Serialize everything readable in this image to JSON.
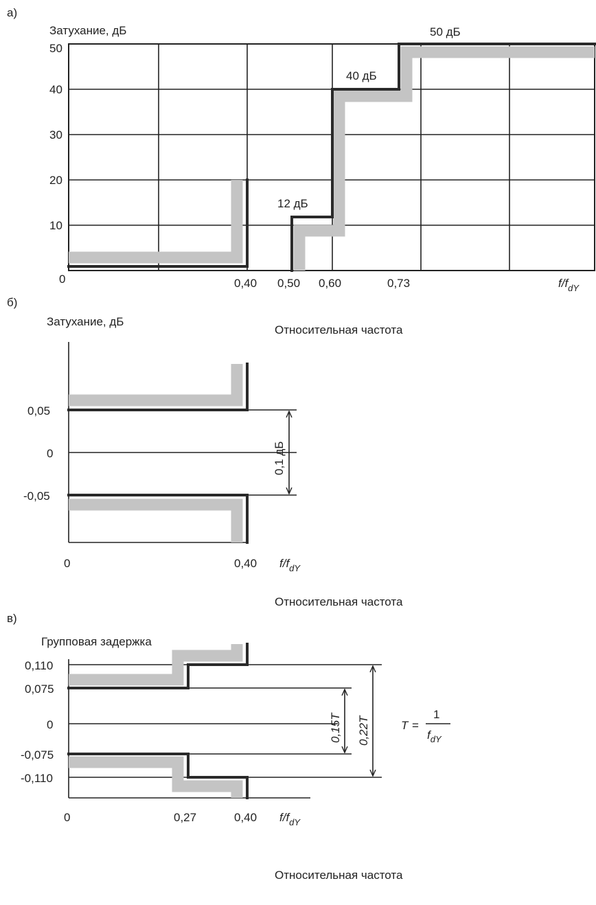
{
  "chart_data": [
    {
      "type": "line",
      "panel_label": "а)",
      "ylabel": "Затухание, дБ",
      "xlabel_italic": "f/f",
      "xlabel_sub": "dY",
      "ylim": [
        0,
        50
      ],
      "yticks": [
        "50",
        "40",
        "30",
        "20",
        "10",
        "0"
      ],
      "xticks": [
        "0,40",
        "0,50",
        "0,60",
        "0,73"
      ],
      "mask": [
        [
          0,
          1
        ],
        [
          0.4,
          1
        ],
        [
          0.4,
          20
        ],
        [
          0.5,
          0
        ],
        [
          0.5,
          12
        ],
        [
          0.6,
          12
        ],
        [
          0.6,
          40
        ],
        [
          0.73,
          40
        ],
        [
          0.73,
          50
        ],
        [
          1.2,
          50
        ]
      ],
      "annotations": [
        "12 дБ",
        "40 дБ",
        "50 дБ"
      ],
      "grid": true
    },
    {
      "type": "line",
      "panel_label": "б)",
      "ylabel": "Затухание, дБ",
      "xlabel_caption": "Относительная частота",
      "xlabel_italic": "f/f",
      "xlabel_sub": "dY",
      "yticks": [
        "0,05",
        "0",
        "-0,05"
      ],
      "xticks": [
        "0",
        "0,40"
      ],
      "mask_upper": [
        [
          0,
          0.05
        ],
        [
          0.4,
          0.05
        ]
      ],
      "mask_lower": [
        [
          0,
          -0.05
        ],
        [
          0.4,
          -0.05
        ]
      ],
      "dimension": "0,1 дБ"
    },
    {
      "type": "line",
      "panel_label": "в)",
      "xlabel_caption_top": "Относительная частота",
      "ylabel": "Групповая задержка",
      "xlabel_italic": "f/f",
      "xlabel_sub": "dY",
      "yticks": [
        "0,110",
        "0,075",
        "0",
        "-0,075",
        "-0,110"
      ],
      "xticks": [
        "0",
        "0,27",
        "0,40"
      ],
      "mask_upper": [
        [
          0,
          0.075
        ],
        [
          0.27,
          0.075
        ],
        [
          0.27,
          0.11
        ],
        [
          0.4,
          0.11
        ]
      ],
      "mask_lower": [
        [
          0,
          -0.075
        ],
        [
          0.27,
          -0.075
        ],
        [
          0.27,
          -0.11
        ],
        [
          0.4,
          -0.11
        ]
      ],
      "dimension_inner": "0,15T",
      "dimension_outer": "0,22T",
      "formula_lhs": "T",
      "formula_eq": "=",
      "formula_num": "1",
      "formula_den": "f",
      "formula_den_sub": "dY",
      "xlabel_caption": "Относительная частота"
    }
  ]
}
